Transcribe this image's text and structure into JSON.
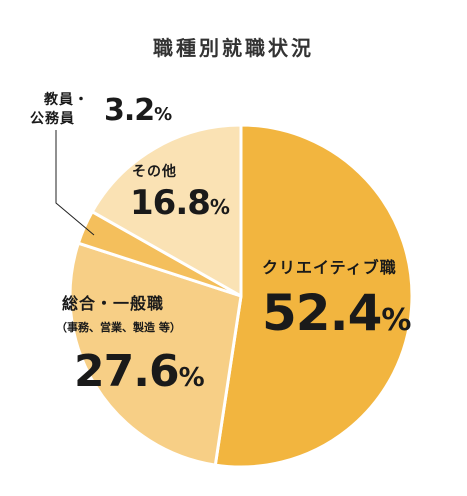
{
  "chart_data": {
    "type": "pie",
    "title": "職種別就職状況",
    "unit": "%",
    "slices": [
      {
        "label": "クリエイティブ職",
        "note": "",
        "value": 52.4,
        "value_text": "52.4",
        "color": "#f2b53f"
      },
      {
        "label": "総合・一般職",
        "note": "（事務、営業、製造 等）",
        "value": 27.6,
        "value_text": "27.6",
        "color": "#f7cf86"
      },
      {
        "label": "教員・公務員",
        "note": "",
        "value": 3.2,
        "value_text": "3.2",
        "color": "#f4bf5c"
      },
      {
        "label": "その他",
        "note": "",
        "value": 16.8,
        "value_text": "16.8",
        "color": "#fae2b4"
      }
    ]
  },
  "labels": {
    "creative": {
      "name": "クリエイティブ職",
      "value": "52.4",
      "unit": "%"
    },
    "general": {
      "name": "総合・一般職",
      "note": "（事務、営業、製造 等）",
      "value": "27.6",
      "unit": "%"
    },
    "teacher": {
      "name_line1": "教員・",
      "name_line2": "公務員",
      "value": "3.2",
      "unit": "%"
    },
    "other": {
      "name": "その他",
      "value": "16.8",
      "unit": "%"
    }
  }
}
